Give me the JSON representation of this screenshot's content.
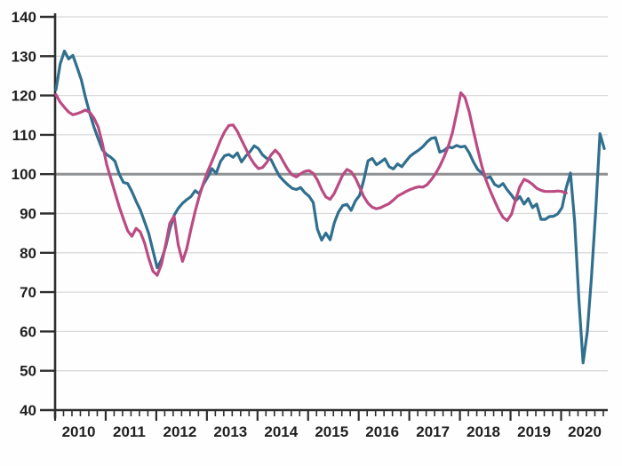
{
  "chart_data": {
    "type": "line",
    "title": "",
    "legend": "none",
    "grid": true,
    "x_axis": {
      "tick_labels": [
        "2010",
        "2011",
        "2012",
        "2013",
        "2014",
        "2015",
        "2016",
        "2017",
        "2018",
        "2019",
        "2020"
      ],
      "range_start": "2010-01",
      "range_end": "2020-11",
      "minor_tick_interval_months": 2
    },
    "y_axis": {
      "min": 40,
      "max": 140,
      "step": 10,
      "tick_labels": [
        "40",
        "50",
        "60",
        "70",
        "80",
        "90",
        "100",
        "110",
        "120",
        "130",
        "140"
      ],
      "reference_line_value": 100
    },
    "series": [
      {
        "name": "blue-line",
        "color": "#306f8e",
        "start_month": "2010-01",
        "points_per_year": 12,
        "values": [
          121.5,
          128,
          131.3,
          129.3,
          130.2,
          127.2,
          124,
          119.5,
          115.5,
          112,
          109,
          106.2,
          105,
          104.3,
          103.3,
          100,
          97.9,
          97.6,
          95.6,
          93.1,
          90.9,
          87.9,
          84.9,
          80.5,
          76.2,
          78.2,
          81.5,
          86,
          89.5,
          91.3,
          92.6,
          93.5,
          94.3,
          95.8,
          95,
          97.5,
          99.3,
          101.4,
          100.2,
          103.2,
          104.7,
          105,
          104.3,
          105.4,
          103.1,
          104.6,
          105.7,
          107.2,
          106.5,
          104.9,
          104,
          103.7,
          101.5,
          99.5,
          98.3,
          97.3,
          96.4,
          96.1,
          96.6,
          95.3,
          94.4,
          92.8,
          86,
          83.2,
          85,
          83.3,
          87.6,
          90.4,
          92,
          92.3,
          90.8,
          93.2,
          94.6,
          98.5,
          103.4,
          104,
          102.4,
          103.1,
          103.9,
          101.9,
          101.3,
          102.6,
          101.9,
          103.3,
          104.6,
          105.4,
          106.1,
          107,
          108.2,
          109.1,
          109.3,
          105.6,
          106,
          106.9,
          106.7,
          107.3,
          106.9,
          107.1,
          105.4,
          103.1,
          101.2,
          100.3,
          99,
          99.3,
          97.4,
          96.8,
          97.6,
          96,
          94.7,
          93.2,
          94.3,
          92.4,
          93.8,
          91.5,
          92.4,
          88.5,
          88.5,
          89.2,
          89.3,
          89.9,
          91.5,
          96.5,
          100.3,
          88,
          68,
          52,
          60,
          74,
          91,
          110.3,
          106.5
        ]
      },
      {
        "name": "pink-line",
        "color": "#bb4b82",
        "start_month": "2010-01",
        "points_per_year": 12,
        "values": [
          120.2,
          118.3,
          117,
          115.8,
          115.1,
          115.4,
          115.8,
          116.3,
          115.7,
          114.3,
          112,
          107.8,
          102.5,
          98.9,
          95.3,
          91.7,
          88.6,
          85.6,
          84.2,
          86.2,
          85.3,
          82.5,
          78.6,
          75.3,
          74.3,
          77,
          82,
          87.5,
          89.3,
          82,
          77.8,
          81,
          86,
          90.5,
          94.5,
          97.8,
          100.8,
          103.3,
          105.9,
          108.6,
          110.8,
          112.4,
          112.5,
          110.9,
          108.7,
          106.5,
          104.3,
          102.6,
          101.4,
          101.7,
          103,
          104.9,
          106.1,
          105,
          103,
          101.2,
          99.8,
          99.3,
          100.1,
          100.7,
          100.9,
          100.2,
          98.5,
          96.1,
          94.2,
          93.6,
          95.1,
          97.5,
          99.8,
          101.2,
          100.6,
          99,
          96.7,
          94.3,
          92.6,
          91.6,
          91.2,
          91.5,
          92,
          92.5,
          93.4,
          94.4,
          95,
          95.6,
          96.1,
          96.5,
          96.8,
          96.7,
          97.3,
          98.6,
          100.1,
          102,
          104.3,
          107,
          110.5,
          115.5,
          120.7,
          119.5,
          115.8,
          111,
          106.3,
          102,
          98.4,
          95.7,
          93.2,
          90.9,
          89,
          88.2,
          89.8,
          93.5,
          96.8,
          98.7,
          98.2,
          97.4,
          96.4,
          95.9,
          95.6,
          95.6,
          95.6,
          95.7,
          95.6,
          95.2
        ]
      }
    ],
    "style_colors": {
      "grid_line": "#d9d9d9",
      "reference_line": "#8e9092",
      "axis_line": "#2e2e2e",
      "tick_mark": "#2e2e2e",
      "label_text": "#1f1f1f",
      "background": "#fefefe"
    }
  }
}
